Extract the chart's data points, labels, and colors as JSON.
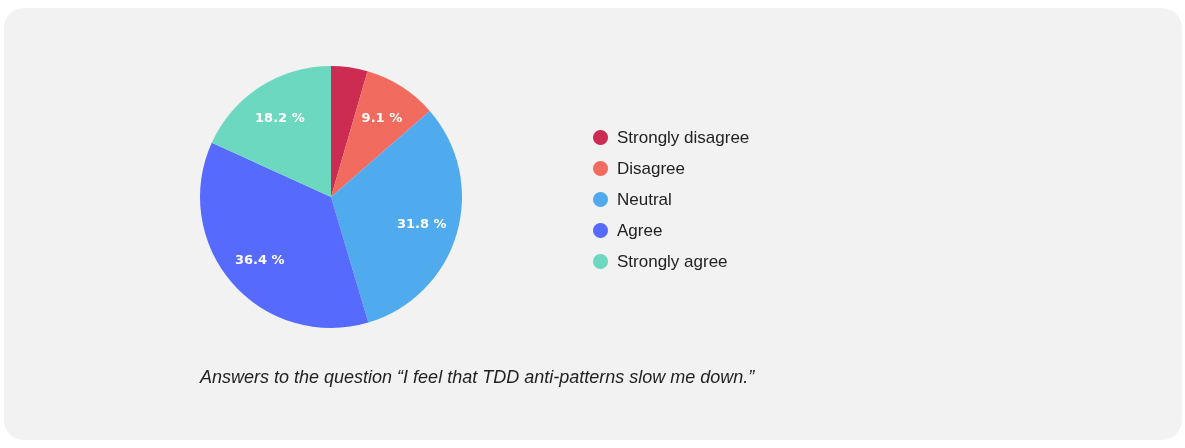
{
  "chart_data": {
    "type": "pie",
    "categories": [
      "Strongly disagree",
      "Disagree",
      "Neutral",
      "Agree",
      "Strongly agree"
    ],
    "values": [
      4.5,
      9.1,
      31.8,
      36.4,
      18.2
    ],
    "colors": [
      "#cc2c52",
      "#f26b5f",
      "#50abee",
      "#566bfe",
      "#6bd8bf"
    ],
    "value_labels": [
      null,
      "9.1 %",
      "31.8 %",
      "36.4 %",
      "18.2 %"
    ],
    "legend": "right",
    "annotations": [
      "Answers to the question “I feel that TDD anti-patterns slow me down.”"
    ]
  }
}
